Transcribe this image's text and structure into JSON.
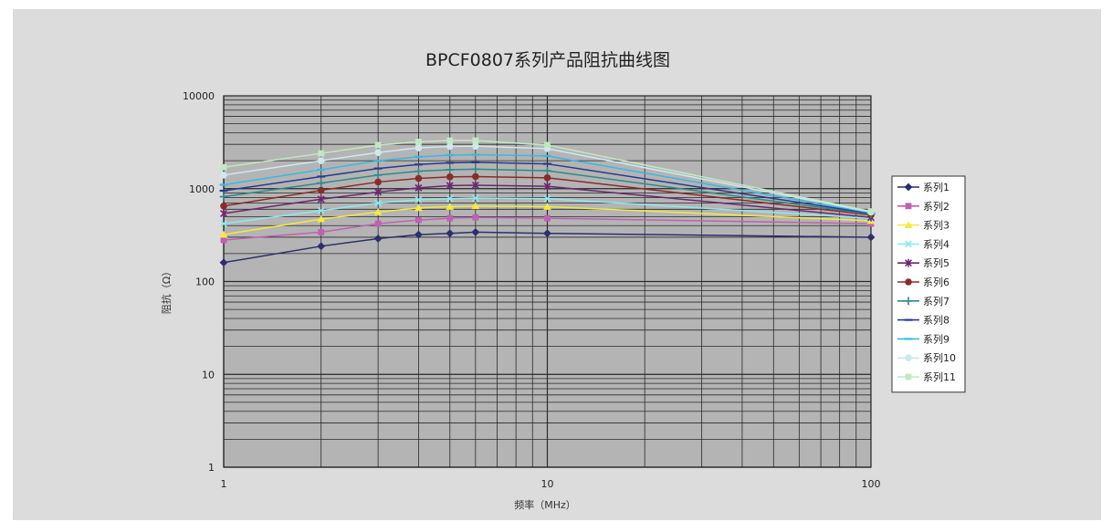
{
  "chart_data": {
    "type": "line",
    "title": "BPCF0807系列产品阻抗曲线图",
    "xlabel": "频率（MHz）",
    "ylabel": "阻抗（Ω）",
    "x_scale": "log",
    "y_scale": "log",
    "xlim": [
      1,
      100
    ],
    "ylim": [
      1,
      10000
    ],
    "x_ticks": [
      "1",
      "10",
      "100"
    ],
    "y_ticks": [
      "1",
      "10",
      "100",
      "1000",
      "10000"
    ],
    "grid": true,
    "legend": "right",
    "x": [
      1,
      2,
      3,
      4,
      5,
      6,
      10,
      100
    ],
    "series": [
      {
        "name": "系列1",
        "color": "#2b2f6b",
        "marker": "diamond",
        "values": [
          160,
          240,
          290,
          320,
          330,
          340,
          330,
          300
        ]
      },
      {
        "name": "系列2",
        "color": "#c060b0",
        "marker": "square",
        "values": [
          280,
          340,
          420,
          460,
          480,
          490,
          480,
          420
        ]
      },
      {
        "name": "系列3",
        "color": "#f4ea40",
        "marker": "triangle",
        "values": [
          320,
          470,
          560,
          620,
          640,
          650,
          640,
          450
        ]
      },
      {
        "name": "系列4",
        "color": "#8fe8f0",
        "marker": "x",
        "values": [
          420,
          580,
          700,
          760,
          780,
          790,
          780,
          480
        ]
      },
      {
        "name": "系列5",
        "color": "#6a2870",
        "marker": "star",
        "values": [
          540,
          770,
          920,
          1020,
          1080,
          1090,
          1060,
          490
        ]
      },
      {
        "name": "系列6",
        "color": "#8c2a2a",
        "marker": "circle",
        "values": [
          650,
          960,
          1180,
          1290,
          1340,
          1350,
          1310,
          520
        ]
      },
      {
        "name": "系列7",
        "color": "#2e8a8a",
        "marker": "plus",
        "values": [
          820,
          1150,
          1400,
          1540,
          1600,
          1620,
          1560,
          530
        ]
      },
      {
        "name": "系列8",
        "color": "#2a3a8a",
        "marker": "dash",
        "values": [
          950,
          1350,
          1650,
          1820,
          1900,
          1920,
          1850,
          540
        ]
      },
      {
        "name": "系列9",
        "color": "#3ab8e0",
        "marker": "dash",
        "values": [
          1100,
          1600,
          2000,
          2200,
          2300,
          2320,
          2250,
          550
        ]
      },
      {
        "name": "系列10",
        "color": "#cfe8f0",
        "marker": "circle",
        "values": [
          1400,
          2000,
          2450,
          2750,
          2850,
          2870,
          2700,
          560
        ]
      },
      {
        "name": "系列11",
        "color": "#c2e8c2",
        "marker": "square",
        "values": [
          1700,
          2400,
          2950,
          3200,
          3300,
          3300,
          2950,
          570
        ]
      }
    ]
  }
}
